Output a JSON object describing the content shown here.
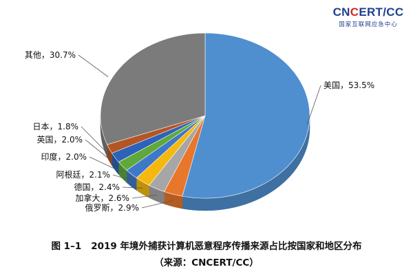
{
  "logo": {
    "main_prefix": "CN",
    "main_accent": "C",
    "main_suffix": "ERT/CC",
    "sub": "国家互联网应急中心"
  },
  "caption": {
    "number": "图 1–1",
    "title": "2019 年境外捕获计算机恶意程序传播来源占比按国家和地区分布",
    "source": "（来源：CNCERT/CC）"
  },
  "chart_data": {
    "type": "pie",
    "style": "3d",
    "slices": [
      {
        "name": "美国",
        "value": 53.5,
        "label": "美国，53.5%",
        "color": "#4f8fcf"
      },
      {
        "name": "俄罗斯",
        "value": 2.9,
        "label": "俄罗斯，2.9%",
        "color": "#e8762b"
      },
      {
        "name": "加拿大",
        "value": 2.6,
        "label": "加拿大，2.6%",
        "color": "#a6a6a6"
      },
      {
        "name": "德国",
        "value": 2.4,
        "label": "德国，2.4%",
        "color": "#f5b80f"
      },
      {
        "name": "阿根廷",
        "value": 2.1,
        "label": "阿根廷，2.1%",
        "color": "#3f78c8"
      },
      {
        "name": "印度",
        "value": 2.0,
        "label": "印度，2.0%",
        "color": "#5fa83b"
      },
      {
        "name": "英国",
        "value": 2.0,
        "label": "英国，2.0%",
        "color": "#2c63b8"
      },
      {
        "name": "日本",
        "value": 1.8,
        "label": "日本，1.8%",
        "color": "#b45524"
      },
      {
        "name": "其他",
        "value": 30.7,
        "label": "其他，30.7%",
        "color": "#7b7b7b"
      }
    ]
  }
}
